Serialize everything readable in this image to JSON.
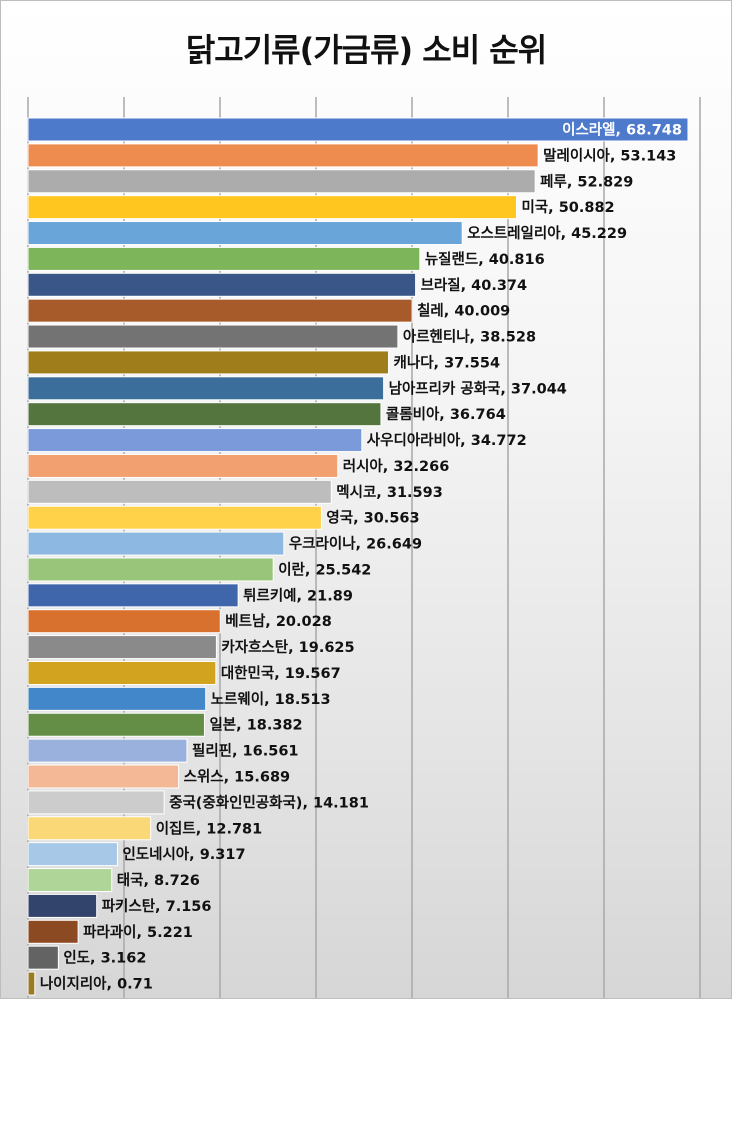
{
  "chart_data": {
    "type": "bar",
    "orientation": "horizontal",
    "title": "닭고기류(가금류) 소비 순위",
    "xlabel": "",
    "ylabel": "",
    "xlim": [
      0,
      70
    ],
    "grid": true,
    "legend": "none",
    "categories": [
      "이스라엘",
      "말레이시아",
      "페루",
      "미국",
      "오스트레일리아",
      "뉴질랜드",
      "브라질",
      "칠레",
      "아르헨티나",
      "캐나다",
      "남아프리카 공화국",
      "콜롬비아",
      "사우디아라비아",
      "러시아",
      "멕시코",
      "영국",
      "우크라이나",
      "이란",
      "튀르키예",
      "베트남",
      "카자흐스탄",
      "대한민국",
      "노르웨이",
      "일본",
      "필리핀",
      "스위스",
      "중국(중화인민공화국)",
      "이집트",
      "인도네시아",
      "태국",
      "파키스탄",
      "파라과이",
      "인도",
      "나이지리아"
    ],
    "values": [
      68.748,
      53.143,
      52.829,
      50.882,
      45.229,
      40.816,
      40.374,
      40.009,
      38.528,
      37.554,
      37.044,
      36.764,
      34.772,
      32.266,
      31.593,
      30.563,
      26.649,
      25.542,
      21.89,
      20.028,
      19.625,
      19.567,
      18.513,
      18.382,
      16.561,
      15.689,
      14.181,
      12.781,
      9.317,
      8.726,
      7.156,
      5.221,
      3.162,
      0.71
    ],
    "labels": [
      "이스라엘, 68.748",
      "말레이시아, 53.143",
      "페루, 52.829",
      "미국, 50.882",
      "오스트레일리아, 45.229",
      "뉴질랜드, 40.816",
      "브라질, 40.374",
      "칠레, 40.009",
      "아르헨티나, 38.528",
      "캐나다, 37.554",
      "남아프리카 공화국, 37.044",
      "콜롬비아, 36.764",
      "사우디아라비아, 34.772",
      "러시아, 32.266",
      "멕시코, 31.593",
      "영국, 30.563",
      "우크라이나, 26.649",
      "이란, 25.542",
      "튀르키예, 21.89",
      "베트남, 20.028",
      "카자흐스탄, 19.625",
      "대한민국, 19.567",
      "노르웨이, 18.513",
      "일본, 18.382",
      "필리핀, 16.561",
      "스위스, 15.689",
      "중국(중화인민공화국), 14.181",
      "이집트, 12.781",
      "인도네시아, 9.317",
      "태국, 8.726",
      "파키스탄, 7.156",
      "파라과이, 5.221",
      "인도, 3.162",
      "나이지리아, 0.71"
    ],
    "colors": [
      "#4E7ACB",
      "#EE8C4F",
      "#ACACAC",
      "#FFC61F",
      "#6AA5DA",
      "#7DB55A",
      "#3A5587",
      "#A75A2A",
      "#737373",
      "#9E7D1A",
      "#3B6E9B",
      "#54753E",
      "#7A9ADA",
      "#F2A070",
      "#BDBDBD",
      "#FFD24A",
      "#8CB8E2",
      "#99C57A",
      "#3F65AA",
      "#D8702E",
      "#8A8A8A",
      "#D2A31F",
      "#4287CA",
      "#648E45",
      "#9AB0DD",
      "#F4B896",
      "#CCCCCC",
      "#FBD877",
      "#A8C8E8",
      "#B0D599",
      "#32446C",
      "#8C4A22",
      "#636363",
      "#9A7A22"
    ]
  }
}
